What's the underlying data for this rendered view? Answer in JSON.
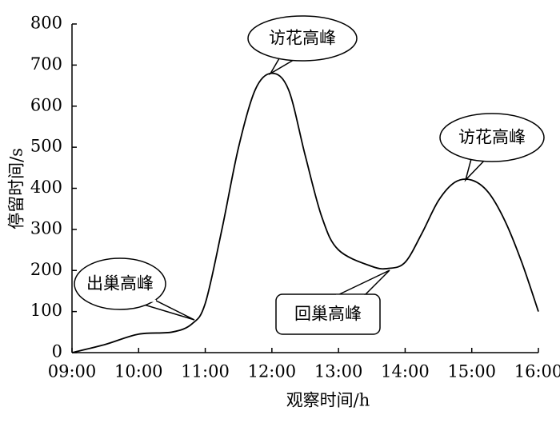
{
  "chart_data": {
    "type": "line",
    "x_label": "观察时间/h",
    "y_label": "停留时间/s",
    "x": [
      9.0,
      9.5,
      10.0,
      10.5,
      10.8,
      11.0,
      11.25,
      11.5,
      11.75,
      12.0,
      12.25,
      12.5,
      12.75,
      13.0,
      13.5,
      13.75,
      14.0,
      14.25,
      14.5,
      14.75,
      15.0,
      15.25,
      15.5,
      15.75,
      16.0
    ],
    "values": [
      0,
      20,
      45,
      50,
      70,
      120,
      300,
      500,
      640,
      680,
      640,
      480,
      330,
      250,
      210,
      205,
      220,
      290,
      370,
      415,
      420,
      390,
      320,
      220,
      100
    ],
    "color": "#000000",
    "xlim": [
      9,
      16
    ],
    "xticks": [
      {
        "value": 9,
        "label": "09:00"
      },
      {
        "value": 10,
        "label": "10:00"
      },
      {
        "value": 11,
        "label": "11:00"
      },
      {
        "value": 12,
        "label": "12:00"
      },
      {
        "value": 13,
        "label": "13:00"
      },
      {
        "value": 14,
        "label": "14:00"
      },
      {
        "value": 15,
        "label": "15:00"
      },
      {
        "value": 16,
        "label": "16:00"
      }
    ],
    "ylim": [
      0,
      800
    ],
    "yticks": [
      0,
      100,
      200,
      300,
      400,
      500,
      600,
      700,
      800
    ],
    "annotations": [
      "出巢高峰",
      "访花高峰",
      "访花高峰",
      "回巢高峰"
    ]
  }
}
